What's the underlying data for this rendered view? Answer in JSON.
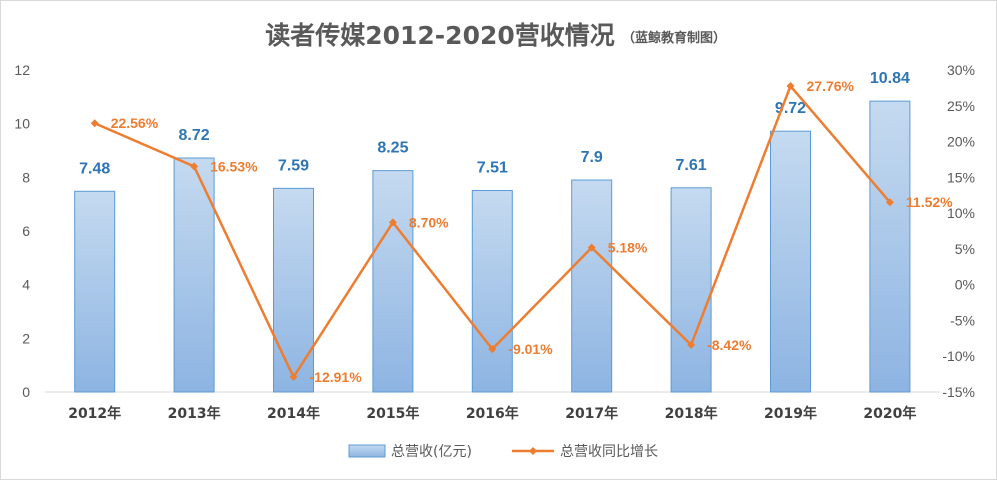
{
  "chart_data": {
    "type": "bar+line",
    "title": "读者传媒2012-2020营收情况",
    "subtitle": "（蓝鲸教育制图）",
    "categories": [
      "2012年",
      "2013年",
      "2014年",
      "2015年",
      "2016年",
      "2017年",
      "2018年",
      "2019年",
      "2020年"
    ],
    "series": [
      {
        "name": "总营收(亿元)",
        "type": "bar",
        "axis": "left",
        "values": [
          7.48,
          8.72,
          7.59,
          8.25,
          7.51,
          7.9,
          7.61,
          9.72,
          10.84
        ],
        "labels": [
          "7.48",
          "8.72",
          "7.59",
          "8.25",
          "7.51",
          "7.9",
          "7.61",
          "9.72",
          "10.84"
        ],
        "color": "#9dc3e6"
      },
      {
        "name": "总营收同比增长",
        "type": "line",
        "axis": "right",
        "values": [
          22.56,
          16.53,
          -12.91,
          8.7,
          -9.01,
          5.18,
          -8.42,
          27.76,
          11.52
        ],
        "labels": [
          "22.56%",
          "16.53%",
          "-12.91%",
          "8.70%",
          "-9.01%",
          "5.18%",
          "-8.42%",
          "27.76%",
          "11.52%"
        ],
        "color": "#ed7d31"
      }
    ],
    "left_axis": {
      "ylim": [
        0,
        12
      ],
      "ticks": [
        "0",
        "2",
        "4",
        "6",
        "8",
        "10",
        "12"
      ]
    },
    "right_axis": {
      "ylim": [
        -15,
        30
      ],
      "ticks": [
        "-15%",
        "-10%",
        "-5%",
        "0%",
        "5%",
        "10%",
        "15%",
        "20%",
        "25%",
        "30%"
      ]
    },
    "grid": false,
    "legend_position": "bottom"
  }
}
